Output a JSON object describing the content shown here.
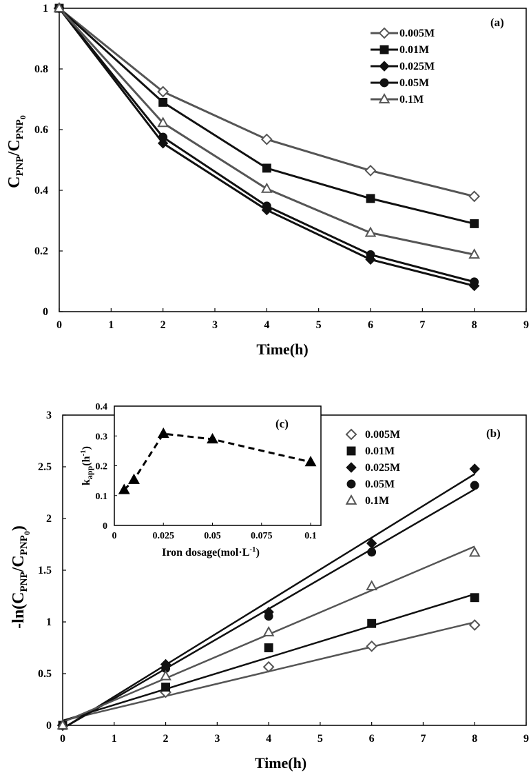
{
  "chart_data": [
    {
      "id": "a",
      "type": "line",
      "panel_label": "(a)",
      "xlabel": "Time(h)",
      "ylabel": {
        "base": "C",
        "sub1": "PNP",
        "mid": "/C",
        "sub2": "PNP",
        "sub2b": "0"
      },
      "xlim": [
        0,
        9
      ],
      "ylim": [
        0,
        1
      ],
      "xticks": [
        "0",
        "1",
        "2",
        "3",
        "4",
        "5",
        "6",
        "7",
        "8",
        "9"
      ],
      "yticks": [
        "0",
        "0.2",
        "0.4",
        "0.6",
        "0.8",
        "1"
      ],
      "x": [
        0,
        2,
        4,
        6,
        8
      ],
      "legend_position": "top-right",
      "series": [
        {
          "name": "0.005M",
          "marker": "diamond-open",
          "color": "#555555",
          "values": [
            1,
            0.725,
            0.568,
            0.465,
            0.38
          ]
        },
        {
          "name": "0.01M",
          "marker": "square-filled",
          "color": "#111111",
          "values": [
            1,
            0.69,
            0.473,
            0.373,
            0.29
          ]
        },
        {
          "name": "0.025M",
          "marker": "diamond-filled",
          "color": "#111111",
          "values": [
            1,
            0.555,
            0.335,
            0.172,
            0.085
          ]
        },
        {
          "name": "0.05M",
          "marker": "circle-filled",
          "color": "#111111",
          "values": [
            1,
            0.575,
            0.348,
            0.188,
            0.098
          ]
        },
        {
          "name": "0.1M",
          "marker": "triangle-open",
          "color": "#555555",
          "values": [
            1,
            0.622,
            0.405,
            0.26,
            0.188
          ]
        }
      ]
    },
    {
      "id": "b",
      "type": "scatter",
      "panel_label": "(b)",
      "xlabel": "Time(h)",
      "ylabel": {
        "base": "-ln(C",
        "sub1": "PNP",
        "mid": "/C",
        "sub2": "PNP",
        "sub2b": "0",
        "end": ")"
      },
      "xlim": [
        0,
        9
      ],
      "ylim": [
        0,
        3
      ],
      "xticks": [
        "0",
        "1",
        "2",
        "3",
        "4",
        "5",
        "6",
        "7",
        "8",
        "9"
      ],
      "yticks": [
        "0",
        "0.5",
        "1",
        "1.5",
        "2",
        "2.5",
        "3"
      ],
      "x": [
        0,
        2,
        4,
        6,
        8
      ],
      "legend_position": "top-right",
      "series": [
        {
          "name": "0.005M",
          "marker": "diamond-open",
          "color": "#555555",
          "values": [
            0,
            0.32,
            0.565,
            0.765,
            0.97
          ],
          "fit": [
            0.045,
            0.119
          ]
        },
        {
          "name": "0.01M",
          "marker": "square-filled",
          "color": "#111111",
          "values": [
            0,
            0.37,
            0.75,
            0.985,
            1.235
          ],
          "fit": [
            0.045,
            0.153
          ]
        },
        {
          "name": "0.025M",
          "marker": "diamond-filled",
          "color": "#111111",
          "values": [
            0,
            0.59,
            1.095,
            1.76,
            2.48
          ],
          "fit": [
            -0.03,
            0.3075
          ]
        },
        {
          "name": "0.05M",
          "marker": "circle-filled",
          "color": "#111111",
          "values": [
            0,
            0.55,
            1.055,
            1.675,
            2.32
          ],
          "fit": [
            -0.03,
            0.289
          ]
        },
        {
          "name": "0.1M",
          "marker": "triangle-open",
          "color": "#555555",
          "values": [
            0,
            0.475,
            0.9,
            1.345,
            1.67
          ],
          "fit": [
            0.03,
            0.2125
          ]
        }
      ]
    },
    {
      "id": "c",
      "type": "line",
      "panel_label": "(c)",
      "xlabel": "Iron dosage(mol·L",
      "xlabel_sup": "-1",
      "xlabel_end": ")",
      "ylabel": {
        "base": "k",
        "sub1": "app",
        "mid": "(h",
        "sup": "-1",
        "end": ")"
      },
      "xlim": [
        0,
        0.1
      ],
      "ylim": [
        0,
        0.4
      ],
      "xtick_values": [
        0,
        0.025,
        0.05,
        0.075,
        0.1
      ],
      "xticks": [
        "0",
        "0.025",
        "0.05",
        "0.075",
        "0.1"
      ],
      "yticks": [
        "0",
        "0.1",
        "0.2",
        "0.3",
        "0.4"
      ],
      "line_style": "dashed",
      "x": [
        0.005,
        0.01,
        0.025,
        0.05,
        0.1
      ],
      "values": [
        0.119,
        0.153,
        0.3075,
        0.289,
        0.2125
      ]
    }
  ]
}
